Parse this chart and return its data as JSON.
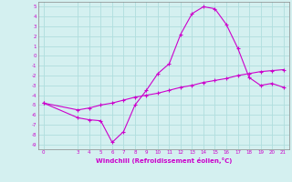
{
  "xlabel": "Windchill (Refroidissement éolien,°C)",
  "background_color": "#d4f0f0",
  "grid_color": "#b0dede",
  "line_color": "#cc00cc",
  "hours": [
    0,
    3,
    4,
    5,
    6,
    7,
    8,
    9,
    10,
    11,
    12,
    13,
    14,
    15,
    16,
    17,
    18,
    19,
    20,
    21
  ],
  "windchill": [
    -4.8,
    -6.3,
    -6.5,
    -6.6,
    -8.8,
    -7.7,
    -5.0,
    -3.5,
    -1.8,
    -0.8,
    2.2,
    4.3,
    5.0,
    4.8,
    3.2,
    0.8,
    -2.2,
    -3.0,
    -2.8,
    -3.2
  ],
  "temp": [
    -4.8,
    -5.5,
    -5.3,
    -5.0,
    -4.8,
    -4.5,
    -4.2,
    -4.0,
    -3.8,
    -3.5,
    -3.2,
    -3.0,
    -2.7,
    -2.5,
    -2.3,
    -2.0,
    -1.8,
    -1.6,
    -1.5,
    -1.4
  ],
  "ylim": [
    -9.5,
    5.5
  ],
  "xlim": [
    -0.5,
    21.5
  ],
  "yticks": [
    5,
    4,
    3,
    2,
    1,
    0,
    -1,
    -2,
    -3,
    -4,
    -5,
    -6,
    -7,
    -8,
    -9
  ],
  "xticks": [
    0,
    3,
    4,
    5,
    6,
    7,
    8,
    9,
    10,
    11,
    12,
    13,
    14,
    15,
    16,
    17,
    18,
    19,
    20,
    21
  ]
}
